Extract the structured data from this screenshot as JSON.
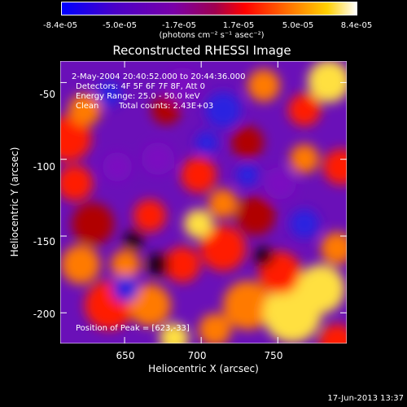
{
  "colorbar": {
    "ticks": [
      "-8.4e-05",
      "-5.0e-05",
      "-1.7e-05",
      "1.7e-05",
      "5.0e-05",
      "8.4e-05"
    ],
    "unit_label": "(photons cm⁻² s⁻¹ asec⁻²)",
    "colors": [
      "#0000ff",
      "#4a00c8",
      "#8a00a0",
      "#ff0000",
      "#ff7a00",
      "#ffffff"
    ]
  },
  "chart_data": {
    "type": "heatmap",
    "title": "Reconstructed RHESSI Image",
    "xlabel": "Heliocentric X (arcsec)",
    "ylabel": "Heliocentric Y (arcsec)",
    "xlim": [
      608,
      795
    ],
    "ylim": [
      -220,
      -36
    ],
    "x_ticks": [
      "650",
      "700",
      "750"
    ],
    "y_ticks": [
      "-50",
      "-100",
      "-150",
      "-200"
    ],
    "value_range": [
      -8.4e-05,
      8.4e-05
    ],
    "annotations": {
      "time_range": "2-May-2004 20:40:52.000 to 20:44:36.000",
      "detectors": "Detectors: 4F 5F 6F 7F 8F, Att 0",
      "energy_range": "Energy Range: 25.0 - 50.0 keV",
      "algorithm": "Clean",
      "total_counts": "Total counts: 2.43E+03",
      "peak": "Position of Peak = [623,-33]"
    }
  },
  "footer": {
    "timestamp": "17-Jun-2013 13:37"
  }
}
